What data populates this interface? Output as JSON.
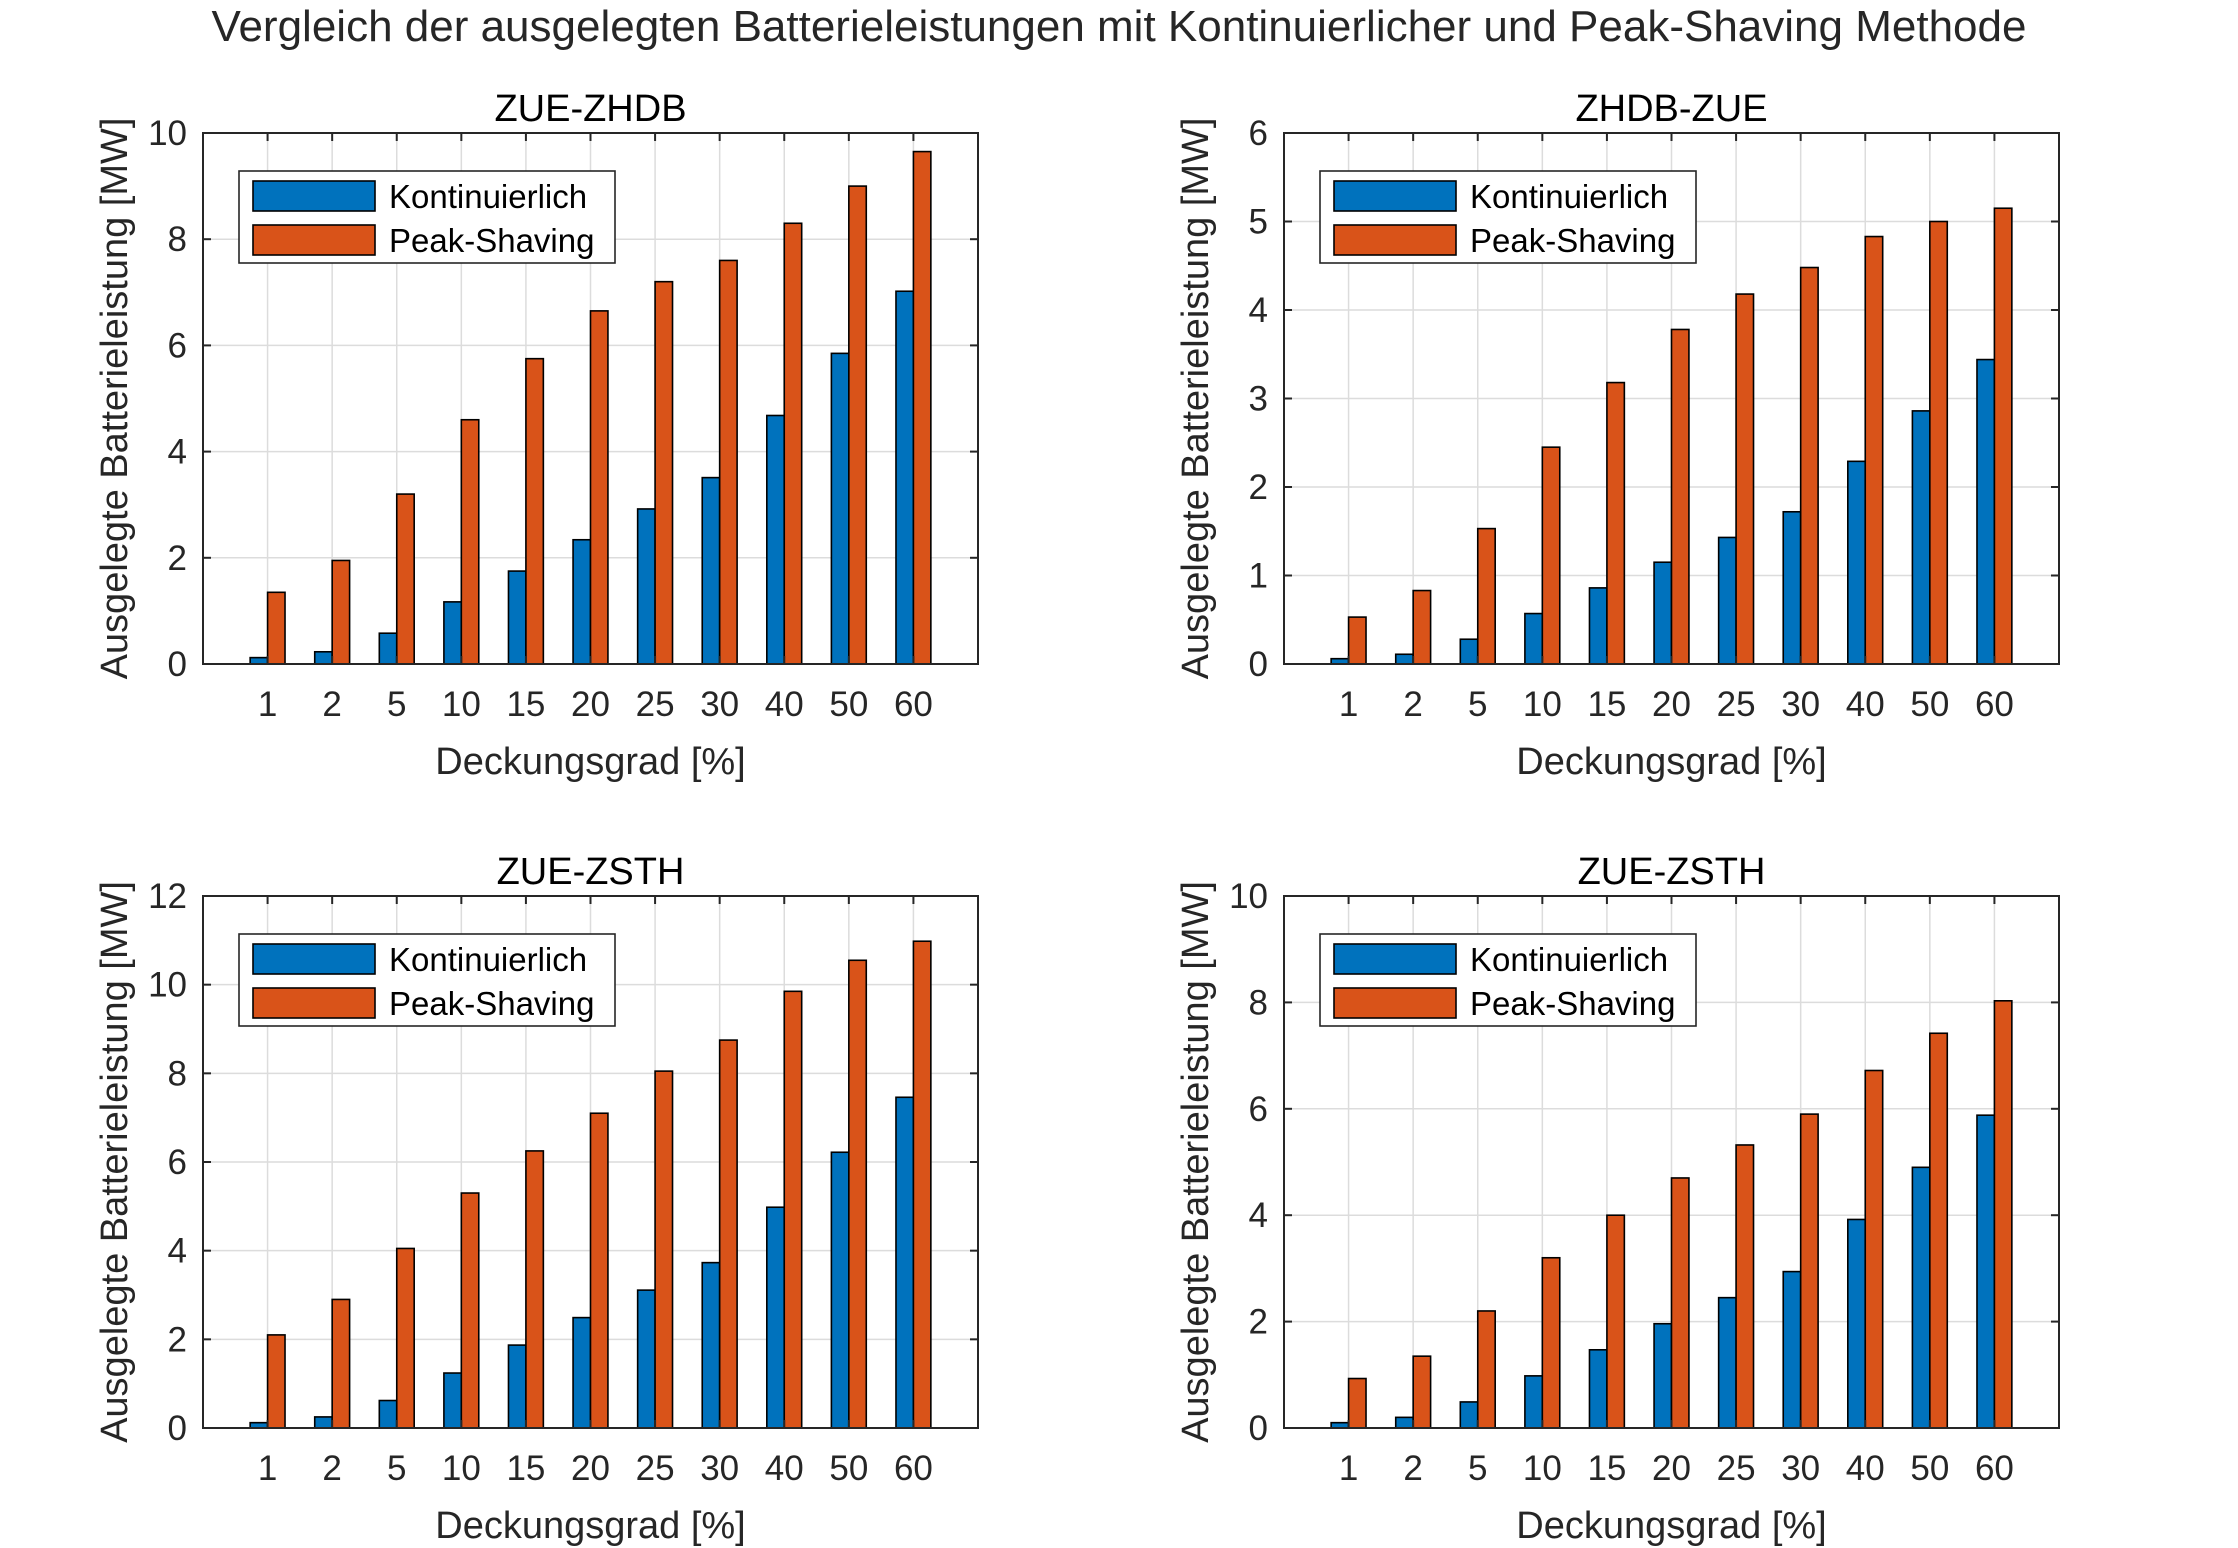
{
  "figure": {
    "title": "Vergleich der ausgelegten Batterieleistungen mit Kontinuierlicher und Peak-Shaving Methode"
  },
  "colors": {
    "kontinuierlich": "#0072BD",
    "peak_shaving": "#D95319",
    "grid": "#dcdcdc",
    "axis": "#262626"
  },
  "chart_data": [
    {
      "type": "bar",
      "title": "ZUE-ZHDB",
      "xlabel": "Deckungsgrad [%]",
      "ylabel": "Ausgelegte Batterieleistung [MW]",
      "categories": [
        "1",
        "2",
        "5",
        "10",
        "15",
        "20",
        "25",
        "30",
        "40",
        "50",
        "60"
      ],
      "ylim": [
        0,
        10
      ],
      "yticks": [
        0,
        2,
        4,
        6,
        8,
        10
      ],
      "grid": true,
      "legend": "top-left",
      "series": [
        {
          "name": "Kontinuierlich",
          "values": [
            0.12,
            0.23,
            0.58,
            1.17,
            1.75,
            2.34,
            2.92,
            3.51,
            4.68,
            5.85,
            7.02
          ]
        },
        {
          "name": "Peak-Shaving",
          "values": [
            1.35,
            1.95,
            3.2,
            4.6,
            5.75,
            6.65,
            7.2,
            7.6,
            8.3,
            9.0,
            9.65
          ]
        }
      ]
    },
    {
      "type": "bar",
      "title": "ZHDB-ZUE",
      "xlabel": "Deckungsgrad [%]",
      "ylabel": "Ausgelegte Batterieleistung [MW]",
      "categories": [
        "1",
        "2",
        "5",
        "10",
        "15",
        "20",
        "25",
        "30",
        "40",
        "50",
        "60"
      ],
      "ylim": [
        0,
        6
      ],
      "yticks": [
        0,
        1,
        2,
        3,
        4,
        5,
        6
      ],
      "grid": true,
      "legend": "top-left",
      "series": [
        {
          "name": "Kontinuierlich",
          "values": [
            0.06,
            0.11,
            0.28,
            0.57,
            0.86,
            1.15,
            1.43,
            1.72,
            2.29,
            2.86,
            3.44
          ]
        },
        {
          "name": "Peak-Shaving",
          "values": [
            0.53,
            0.83,
            1.53,
            2.45,
            3.18,
            3.78,
            4.18,
            4.48,
            4.83,
            5.0,
            5.15
          ]
        }
      ]
    },
    {
      "type": "bar",
      "title": "ZUE-ZSTH",
      "xlabel": "Deckungsgrad [%]",
      "ylabel": "Ausgelegte Batterieleistung [MW]",
      "categories": [
        "1",
        "2",
        "5",
        "10",
        "15",
        "20",
        "25",
        "30",
        "40",
        "50",
        "60"
      ],
      "ylim": [
        0,
        12
      ],
      "yticks": [
        0,
        2,
        4,
        6,
        8,
        10,
        12
      ],
      "grid": true,
      "legend": "top-left",
      "series": [
        {
          "name": "Kontinuierlich",
          "values": [
            0.12,
            0.25,
            0.62,
            1.24,
            1.87,
            2.49,
            3.11,
            3.73,
            4.98,
            6.22,
            7.46
          ]
        },
        {
          "name": "Peak-Shaving",
          "values": [
            2.1,
            2.9,
            4.05,
            5.3,
            6.25,
            7.1,
            8.05,
            8.75,
            9.85,
            10.55,
            10.98
          ]
        }
      ]
    },
    {
      "type": "bar",
      "title": "ZUE-ZSTH",
      "xlabel": "Deckungsgrad [%]",
      "ylabel": "Ausgelegte Batterieleistung [MW]",
      "categories": [
        "1",
        "2",
        "5",
        "10",
        "15",
        "20",
        "25",
        "30",
        "40",
        "50",
        "60"
      ],
      "ylim": [
        0,
        10
      ],
      "yticks": [
        0,
        2,
        4,
        6,
        8,
        10
      ],
      "grid": true,
      "legend": "top-left",
      "series": [
        {
          "name": "Kontinuierlich",
          "values": [
            0.1,
            0.2,
            0.49,
            0.98,
            1.47,
            1.96,
            2.45,
            2.94,
            3.92,
            4.9,
            5.88
          ]
        },
        {
          "name": "Peak-Shaving",
          "values": [
            0.93,
            1.35,
            2.2,
            3.2,
            4.0,
            4.7,
            5.32,
            5.9,
            6.72,
            7.42,
            8.03
          ]
        }
      ]
    }
  ]
}
